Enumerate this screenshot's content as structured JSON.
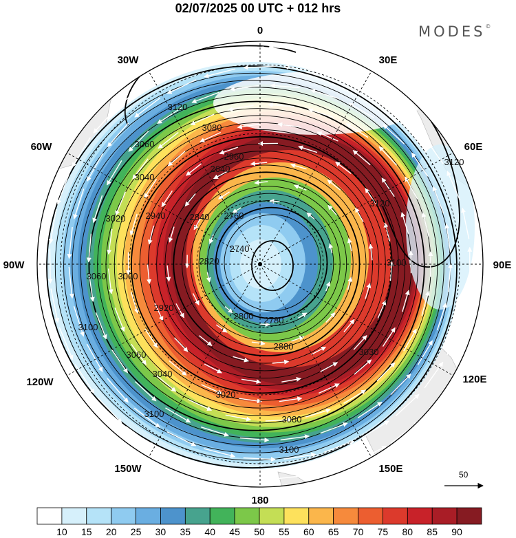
{
  "header": {
    "title": "02/07/2025  00 UTC  + 012 hrs",
    "brand": "MODES",
    "brand_mark": "©"
  },
  "map": {
    "projection": "south-polar-stereographic",
    "lon_labels": [
      {
        "id": "0",
        "text": "0",
        "lon": 0
      },
      {
        "id": "30e",
        "text": "30E",
        "lon": 30
      },
      {
        "id": "60e",
        "text": "60E",
        "lon": 60
      },
      {
        "id": "90e",
        "text": "90E",
        "lon": 90
      },
      {
        "id": "120e",
        "text": "120E",
        "lon": 120
      },
      {
        "id": "150e",
        "text": "150E",
        "lon": 150
      },
      {
        "id": "180",
        "text": "180",
        "lon": 180
      },
      {
        "id": "150w",
        "text": "150W",
        "lon": -150
      },
      {
        "id": "120w",
        "text": "120W",
        "lon": -120
      },
      {
        "id": "90w",
        "text": "90W",
        "lon": -90
      },
      {
        "id": "60w",
        "text": "60W",
        "lon": -60
      },
      {
        "id": "30w",
        "text": "30W",
        "lon": -30
      }
    ],
    "contour_labels": [
      "3120",
      "3080",
      "3060",
      "2960",
      "3040",
      "3020",
      "2940",
      "2840",
      "2640",
      "2760",
      "2740",
      "2820",
      "3000",
      "3060",
      "2920",
      "3100",
      "2800",
      "2780",
      "2880",
      "3060",
      "3040",
      "3020",
      "3080",
      "3100",
      "3100",
      "3030",
      "3100",
      "3120",
      "3120"
    ],
    "vector_reference": "50",
    "colors": {
      "grid": "#000000",
      "land": "#ececec",
      "contour": "#000000",
      "wind_arrow": "#ffffff"
    }
  },
  "colorbar": {
    "ticks": [
      "10",
      "15",
      "20",
      "25",
      "30",
      "35",
      "40",
      "45",
      "50",
      "55",
      "60",
      "65",
      "70",
      "75",
      "80",
      "85",
      "90"
    ],
    "colors": [
      "#ffffff",
      "#d6f0fb",
      "#b5e3f8",
      "#8fcbf0",
      "#6aaee1",
      "#4d93cc",
      "#47a38e",
      "#42b35a",
      "#7cc849",
      "#c4de55",
      "#fde15c",
      "#fbb64b",
      "#f68a3c",
      "#ec5e30",
      "#dc3a2c",
      "#c82229",
      "#a91d26",
      "#861b22"
    ]
  }
}
